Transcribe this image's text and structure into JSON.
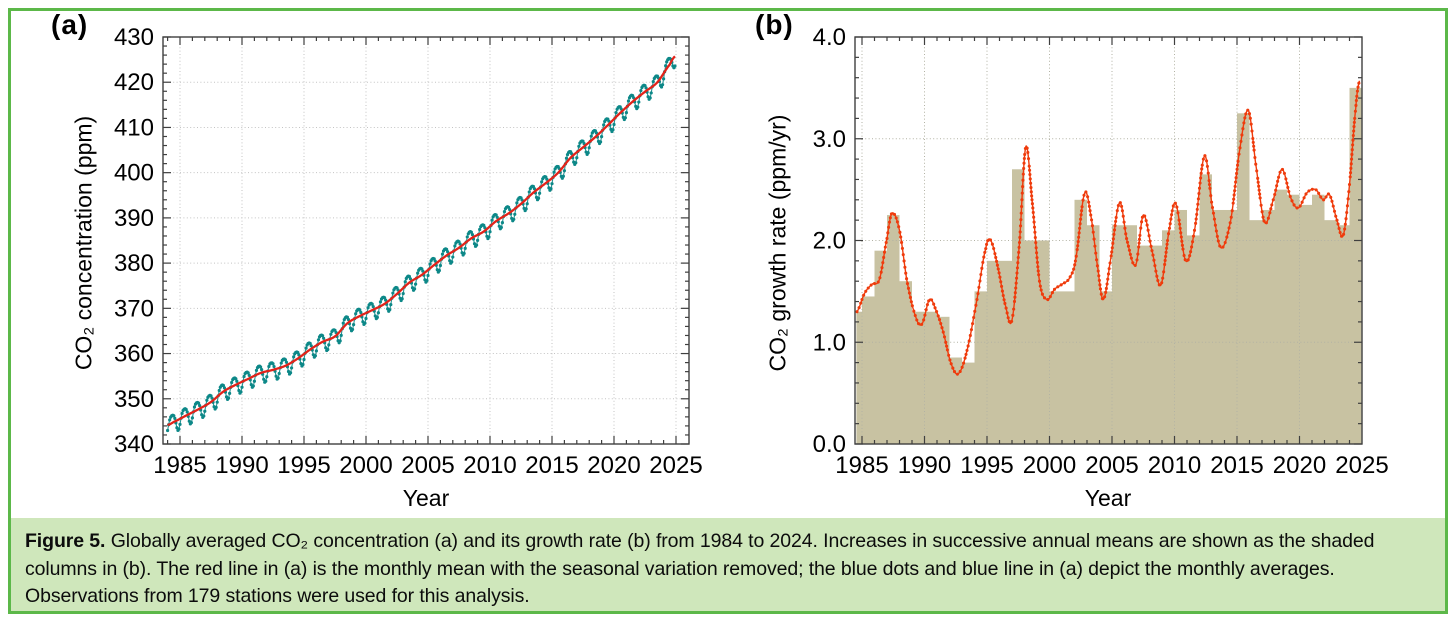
{
  "figure": {
    "colors": {
      "border_green": "#5cb849",
      "caption_bg": "#cfe7bb",
      "axis": "#3f3f3f",
      "grid": "#c3c3c3",
      "grid_over_bars": "#b2b2a4"
    },
    "caption": {
      "label": "Figure 5.",
      "text": " Globally averaged CO₂ concentration (a) and its growth rate (b) from 1984 to 2024. Increases in successive annual means are shown as the shaded columns in (b). The red line in (a) is the monthly mean with the seasonal variation removed; the blue dots and blue line in (a) depict the monthly averages. Observations from 179 stations were used for this analysis.",
      "stations_count": "179",
      "period": "1984 to 2024"
    }
  },
  "chart_data": [
    {
      "panel": "a",
      "type": "line",
      "panel_label": "(a)",
      "xlabel": "Year",
      "ylabel": "CO₂ concentration (ppm)",
      "xlim": [
        1983.6,
        2026.1
      ],
      "ylim": [
        340,
        430
      ],
      "x_ticks": [
        1985,
        1990,
        1995,
        2000,
        2005,
        2010,
        2015,
        2020,
        2025
      ],
      "y_ticks": [
        340,
        350,
        360,
        370,
        380,
        390,
        400,
        410,
        420,
        430
      ],
      "grid": true,
      "legend_position": "none",
      "series": [
        {
          "name": "monthly averages (blue dots and blue line)",
          "color": "#0d8888",
          "marker": "dot"
        },
        {
          "name": "monthly mean with seasonal variation removed (red line)",
          "color": "#e2231a",
          "marker": "none"
        }
      ],
      "annual_means": {
        "years_start": 1984,
        "values_ppm": [
          344.9,
          346.3,
          347.7,
          349.3,
          351.6,
          353.1,
          354.4,
          355.7,
          356.4,
          357.3,
          358.9,
          360.9,
          362.6,
          363.8,
          366.7,
          368.3,
          369.6,
          371.0,
          373.2,
          375.7,
          377.4,
          379.6,
          381.7,
          383.4,
          385.5,
          387.0,
          389.3,
          391.0,
          393.1,
          395.6,
          397.7,
          400.0,
          403.3,
          405.6,
          407.9,
          410.5,
          413.2,
          415.7,
          417.9,
          420.0,
          423.9
        ]
      },
      "seasonal_peak_to_trough_ppm": 4.0
    },
    {
      "panel": "b",
      "type": "bar+line",
      "panel_label": "(b)",
      "xlabel": "Year",
      "ylabel": "CO₂ growth rate (ppm/yr)",
      "xlim": [
        1984.4,
        2025.0
      ],
      "ylim": [
        0.0,
        4.0
      ],
      "x_ticks": [
        1985,
        1990,
        1995,
        2000,
        2005,
        2010,
        2015,
        2020,
        2025
      ],
      "y_ticks": [
        0,
        1,
        2,
        3,
        4
      ],
      "y_tick_labels": [
        "0.0",
        "1.0",
        "2.0",
        "3.0",
        "4.0"
      ],
      "grid": true,
      "legend_position": "none",
      "bars": {
        "name": "increase in successive annual means (shaded columns)",
        "color": "#c8c2a2",
        "years_start": 1984,
        "span_years": 1,
        "values_ppm_per_yr": [
          1.3,
          1.45,
          1.9,
          2.25,
          1.6,
          1.3,
          1.3,
          1.25,
          0.85,
          0.8,
          1.5,
          1.8,
          1.8,
          2.7,
          2.0,
          2.0,
          1.5,
          1.5,
          2.4,
          2.15,
          1.5,
          2.15,
          2.15,
          1.95,
          1.95,
          2.1,
          2.3,
          2.05,
          2.65,
          2.3,
          2.3,
          3.25,
          2.2,
          2.3,
          2.5,
          2.45,
          2.35,
          2.45,
          2.2,
          2.15,
          3.5
        ]
      },
      "line": {
        "name": "smoothed monthly growth rate (red dotted line)",
        "color": "#ef3b0c",
        "anchors_year_value": [
          [
            1984.6,
            1.3
          ],
          [
            1985.2,
            1.48
          ],
          [
            1985.8,
            1.57
          ],
          [
            1986.4,
            1.62
          ],
          [
            1987.0,
            2.02
          ],
          [
            1987.4,
            2.27
          ],
          [
            1988.0,
            2.1
          ],
          [
            1988.6,
            1.6
          ],
          [
            1989.3,
            1.25
          ],
          [
            1989.8,
            1.18
          ],
          [
            1990.4,
            1.42
          ],
          [
            1990.9,
            1.32
          ],
          [
            1991.5,
            1.1
          ],
          [
            1992.1,
            0.8
          ],
          [
            1992.7,
            0.69
          ],
          [
            1993.4,
            0.92
          ],
          [
            1994.2,
            1.42
          ],
          [
            1994.9,
            1.92
          ],
          [
            1995.3,
            2.0
          ],
          [
            1995.9,
            1.72
          ],
          [
            1996.5,
            1.35
          ],
          [
            1997.0,
            1.22
          ],
          [
            1997.6,
            1.98
          ],
          [
            1998.1,
            2.92
          ],
          [
            1998.6,
            2.4
          ],
          [
            1999.2,
            1.6
          ],
          [
            1999.8,
            1.42
          ],
          [
            2000.4,
            1.52
          ],
          [
            2001.0,
            1.57
          ],
          [
            2001.6,
            1.63
          ],
          [
            2002.1,
            1.82
          ],
          [
            2002.8,
            2.46
          ],
          [
            2003.3,
            2.25
          ],
          [
            2003.9,
            1.7
          ],
          [
            2004.3,
            1.42
          ],
          [
            2004.8,
            1.75
          ],
          [
            2005.6,
            2.37
          ],
          [
            2006.2,
            2.0
          ],
          [
            2006.9,
            1.76
          ],
          [
            2007.5,
            2.25
          ],
          [
            2008.2,
            1.9
          ],
          [
            2008.9,
            1.56
          ],
          [
            2009.6,
            2.12
          ],
          [
            2010.1,
            2.36
          ],
          [
            2010.9,
            1.8
          ],
          [
            2011.6,
            2.1
          ],
          [
            2012.4,
            2.83
          ],
          [
            2013.0,
            2.35
          ],
          [
            2013.7,
            1.93
          ],
          [
            2014.5,
            2.2
          ],
          [
            2015.2,
            2.88
          ],
          [
            2015.9,
            3.28
          ],
          [
            2016.5,
            2.75
          ],
          [
            2017.2,
            2.18
          ],
          [
            2017.9,
            2.4
          ],
          [
            2018.6,
            2.7
          ],
          [
            2019.3,
            2.42
          ],
          [
            2019.9,
            2.32
          ],
          [
            2020.6,
            2.47
          ],
          [
            2021.3,
            2.5
          ],
          [
            2021.9,
            2.4
          ],
          [
            2022.4,
            2.45
          ],
          [
            2023.0,
            2.2
          ],
          [
            2023.5,
            2.05
          ],
          [
            2024.0,
            2.55
          ],
          [
            2024.5,
            3.3
          ],
          [
            2024.8,
            3.57
          ]
        ]
      }
    }
  ]
}
